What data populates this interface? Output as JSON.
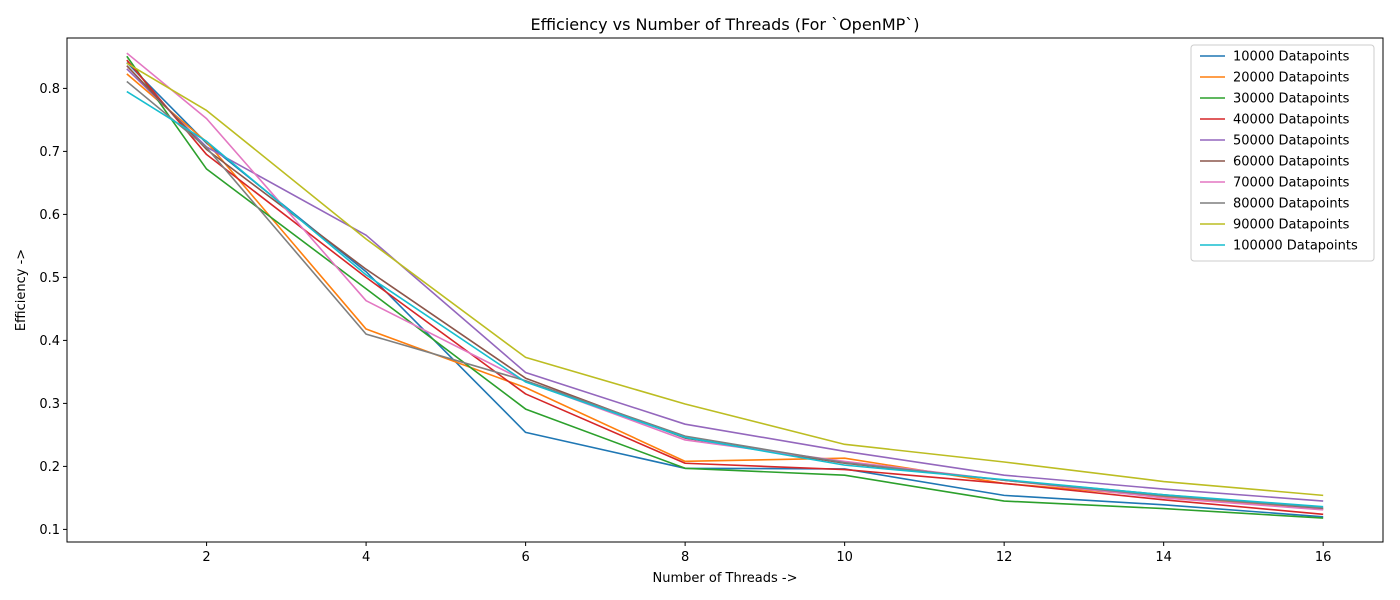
{
  "chart_data": {
    "type": "line",
    "title": "Efficiency vs Number of Threads (For `OpenMP`)",
    "xlabel": "Number of Threads ->",
    "ylabel": "Efficiency ->",
    "x": [
      1,
      2,
      4,
      6,
      8,
      10,
      12,
      14,
      16
    ],
    "xlim": [
      0.25,
      16.75
    ],
    "ylim": [
      0.08,
      0.88
    ],
    "xticks": [
      2,
      4,
      6,
      8,
      10,
      12,
      14,
      16
    ],
    "yticks": [
      0.1,
      0.2,
      0.3,
      0.4,
      0.5,
      0.6,
      0.7,
      0.8
    ],
    "grid": false,
    "legend_position": "top-right",
    "series": [
      {
        "name": "10000 Datapoints",
        "color": "#1f77b4",
        "values": [
          0.841,
          0.713,
          0.509,
          0.254,
          0.197,
          0.196,
          0.154,
          0.139,
          0.12
        ]
      },
      {
        "name": "20000 Datapoints",
        "color": "#ff7f0e",
        "values": [
          0.823,
          0.715,
          0.418,
          0.325,
          0.208,
          0.213,
          0.173,
          0.152,
          0.132
        ]
      },
      {
        "name": "30000 Datapoints",
        "color": "#2ca02c",
        "values": [
          0.851,
          0.672,
          0.482,
          0.291,
          0.197,
          0.186,
          0.145,
          0.133,
          0.118
        ]
      },
      {
        "name": "40000 Datapoints",
        "color": "#d62728",
        "values": [
          0.845,
          0.695,
          0.5,
          0.315,
          0.205,
          0.195,
          0.173,
          0.147,
          0.124
        ]
      },
      {
        "name": "50000 Datapoints",
        "color": "#9467bd",
        "values": [
          0.831,
          0.707,
          0.567,
          0.349,
          0.267,
          0.224,
          0.186,
          0.164,
          0.145
        ]
      },
      {
        "name": "60000 Datapoints",
        "color": "#8c564b",
        "values": [
          0.836,
          0.703,
          0.513,
          0.34,
          0.245,
          0.205,
          0.178,
          0.155,
          0.133
        ]
      },
      {
        "name": "70000 Datapoints",
        "color": "#e377c2",
        "values": [
          0.856,
          0.752,
          0.463,
          0.335,
          0.242,
          0.208,
          0.178,
          0.15,
          0.131
        ]
      },
      {
        "name": "80000 Datapoints",
        "color": "#7f7f7f",
        "values": [
          0.811,
          0.706,
          0.41,
          0.336,
          0.248,
          0.206,
          0.178,
          0.153,
          0.134
        ]
      },
      {
        "name": "90000 Datapoints",
        "color": "#bcbd22",
        "values": [
          0.84,
          0.765,
          0.561,
          0.373,
          0.299,
          0.235,
          0.207,
          0.176,
          0.154
        ]
      },
      {
        "name": "100000 Datapoints",
        "color": "#17becf",
        "values": [
          0.795,
          0.716,
          0.504,
          0.334,
          0.246,
          0.202,
          0.179,
          0.155,
          0.136
        ]
      }
    ]
  }
}
